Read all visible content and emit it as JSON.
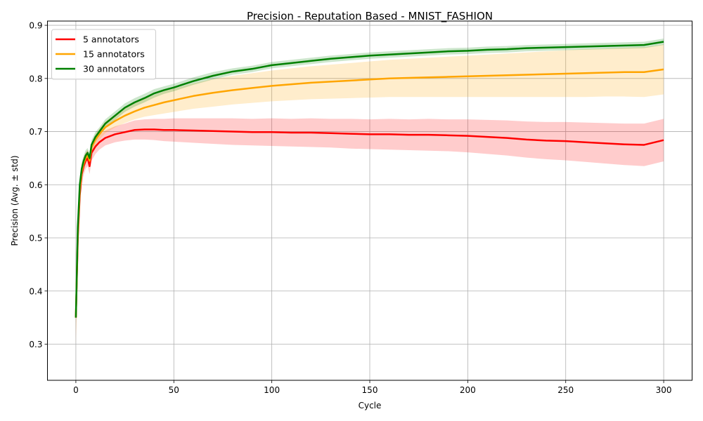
{
  "chart_data": {
    "type": "line",
    "title": "Precision - Reputation Based - MNIST_FASHION",
    "xlabel": "Cycle",
    "ylabel": "Precision (Avg. ± std)",
    "xlim": [
      -14.5,
      314.5
    ],
    "ylim": [
      0.232,
      0.908
    ],
    "xticks": [
      0,
      50,
      100,
      150,
      200,
      250,
      300
    ],
    "xtick_labels": [
      "0",
      "50",
      "100",
      "150",
      "200",
      "250",
      "300"
    ],
    "yticks": [
      0.3,
      0.4,
      0.5,
      0.6,
      0.7,
      0.8,
      0.9
    ],
    "ytick_labels": [
      "0.3",
      "0.4",
      "0.5",
      "0.6",
      "0.7",
      "0.8",
      "0.9"
    ],
    "grid": true,
    "legend_position": "top-left",
    "series": [
      {
        "name": "5 annotators",
        "color": "#ff0000",
        "band_color": "#ff0000",
        "x": [
          0,
          1,
          2,
          3,
          4,
          5,
          6,
          7,
          8,
          10,
          12,
          15,
          20,
          25,
          30,
          35,
          40,
          45,
          50,
          60,
          70,
          80,
          90,
          100,
          110,
          120,
          130,
          140,
          150,
          160,
          170,
          180,
          190,
          200,
          210,
          220,
          230,
          240,
          250,
          260,
          270,
          280,
          290,
          300
        ],
        "mean": [
          0.35,
          0.5,
          0.58,
          0.62,
          0.635,
          0.645,
          0.65,
          0.635,
          0.66,
          0.672,
          0.68,
          0.688,
          0.695,
          0.699,
          0.703,
          0.704,
          0.704,
          0.703,
          0.703,
          0.702,
          0.701,
          0.7,
          0.699,
          0.699,
          0.698,
          0.698,
          0.697,
          0.696,
          0.695,
          0.695,
          0.694,
          0.694,
          0.693,
          0.692,
          0.69,
          0.688,
          0.685,
          0.683,
          0.682,
          0.68,
          0.678,
          0.676,
          0.675,
          0.684
        ],
        "std": [
          0.04,
          0.03,
          0.02,
          0.018,
          0.016,
          0.015,
          0.015,
          0.015,
          0.015,
          0.014,
          0.014,
          0.014,
          0.015,
          0.016,
          0.018,
          0.019,
          0.02,
          0.021,
          0.022,
          0.023,
          0.024,
          0.025,
          0.025,
          0.026,
          0.026,
          0.027,
          0.027,
          0.028,
          0.028,
          0.029,
          0.029,
          0.03,
          0.03,
          0.031,
          0.032,
          0.033,
          0.034,
          0.035,
          0.036,
          0.037,
          0.038,
          0.039,
          0.04,
          0.04
        ]
      },
      {
        "name": "15 annotators",
        "color": "#ffa500",
        "band_color": "#ffa500",
        "x": [
          0,
          1,
          2,
          3,
          4,
          5,
          6,
          7,
          8,
          10,
          12,
          15,
          20,
          25,
          30,
          35,
          40,
          45,
          50,
          60,
          70,
          80,
          90,
          100,
          110,
          120,
          130,
          140,
          150,
          160,
          170,
          180,
          190,
          200,
          210,
          220,
          230,
          240,
          250,
          260,
          270,
          280,
          290,
          300
        ],
        "mean": [
          0.35,
          0.51,
          0.59,
          0.625,
          0.64,
          0.65,
          0.655,
          0.645,
          0.67,
          0.685,
          0.695,
          0.708,
          0.72,
          0.73,
          0.738,
          0.745,
          0.75,
          0.755,
          0.759,
          0.767,
          0.773,
          0.778,
          0.782,
          0.786,
          0.789,
          0.792,
          0.794,
          0.796,
          0.798,
          0.8,
          0.801,
          0.802,
          0.803,
          0.804,
          0.805,
          0.806,
          0.807,
          0.808,
          0.809,
          0.81,
          0.811,
          0.812,
          0.812,
          0.817
        ],
        "std": [
          0.05,
          0.03,
          0.02,
          0.015,
          0.012,
          0.01,
          0.01,
          0.01,
          0.01,
          0.01,
          0.01,
          0.011,
          0.012,
          0.014,
          0.015,
          0.017,
          0.019,
          0.021,
          0.022,
          0.024,
          0.026,
          0.027,
          0.028,
          0.029,
          0.03,
          0.031,
          0.032,
          0.033,
          0.034,
          0.035,
          0.036,
          0.037,
          0.038,
          0.039,
          0.04,
          0.041,
          0.042,
          0.043,
          0.044,
          0.045,
          0.045,
          0.046,
          0.047,
          0.047
        ]
      },
      {
        "name": "30 annotators",
        "color": "#008000",
        "band_color": "#008000",
        "x": [
          0,
          1,
          2,
          3,
          4,
          5,
          6,
          7,
          8,
          10,
          12,
          15,
          20,
          25,
          30,
          35,
          40,
          45,
          50,
          60,
          70,
          80,
          90,
          100,
          110,
          120,
          130,
          140,
          150,
          160,
          170,
          180,
          190,
          200,
          210,
          220,
          230,
          240,
          250,
          260,
          270,
          280,
          290,
          300
        ],
        "mean": [
          0.35,
          0.52,
          0.6,
          0.63,
          0.645,
          0.655,
          0.66,
          0.65,
          0.675,
          0.69,
          0.7,
          0.715,
          0.73,
          0.745,
          0.755,
          0.763,
          0.772,
          0.778,
          0.783,
          0.795,
          0.805,
          0.813,
          0.818,
          0.825,
          0.829,
          0.833,
          0.837,
          0.84,
          0.843,
          0.845,
          0.847,
          0.849,
          0.851,
          0.852,
          0.854,
          0.855,
          0.857,
          0.858,
          0.859,
          0.86,
          0.861,
          0.862,
          0.863,
          0.869
        ],
        "std": [
          0.03,
          0.02,
          0.015,
          0.012,
          0.01,
          0.01,
          0.009,
          0.009,
          0.009,
          0.009,
          0.008,
          0.008,
          0.008,
          0.008,
          0.008,
          0.008,
          0.008,
          0.007,
          0.007,
          0.007,
          0.007,
          0.006,
          0.006,
          0.006,
          0.006,
          0.006,
          0.006,
          0.006,
          0.006,
          0.006,
          0.006,
          0.006,
          0.006,
          0.006,
          0.006,
          0.006,
          0.006,
          0.006,
          0.006,
          0.006,
          0.006,
          0.006,
          0.006,
          0.006
        ]
      }
    ]
  }
}
